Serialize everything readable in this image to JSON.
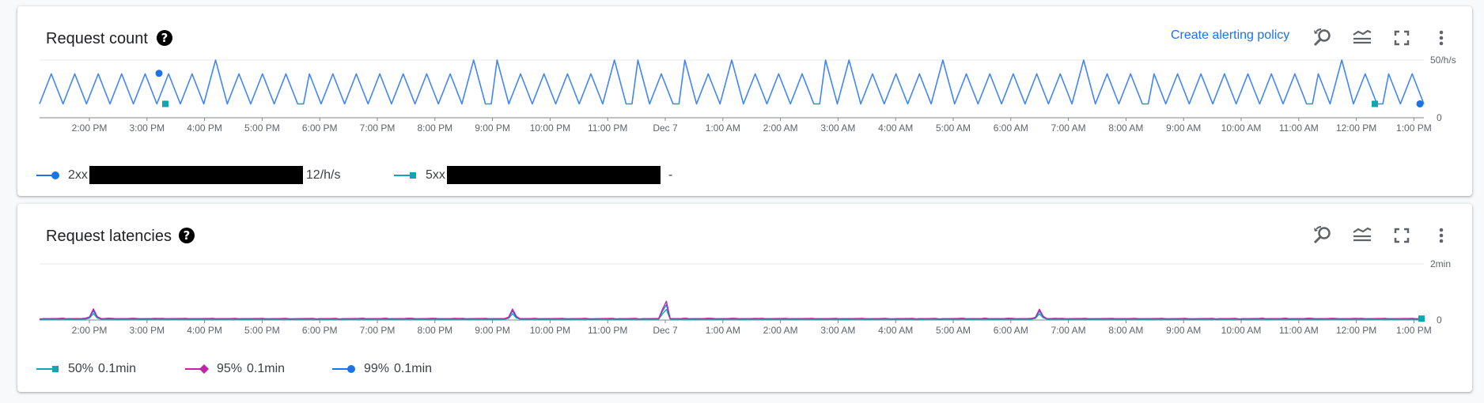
{
  "request_count": {
    "title": "Request count",
    "create_alert_label": "Create alerting policy",
    "y_top_label": "50/h/s",
    "y_bottom_label": "0",
    "legend": [
      {
        "name": "2xx",
        "value": "12/h/s",
        "color": "#1a73e8",
        "marker": "circle"
      },
      {
        "name": "5xx",
        "value": "-",
        "color": "#12a4af",
        "marker": "square"
      }
    ]
  },
  "request_latencies": {
    "title": "Request latencies",
    "y_top_label": "2min",
    "y_bottom_label": "0",
    "legend": [
      {
        "name": "50%",
        "value": "0.1min",
        "color": "#12a4af",
        "marker": "square"
      },
      {
        "name": "95%",
        "value": "0.1min",
        "color": "#c026a3",
        "marker": "diamond"
      },
      {
        "name": "99%",
        "value": "0.1min",
        "color": "#1a73e8",
        "marker": "circle"
      }
    ]
  },
  "x_ticks": [
    "2:00 PM",
    "3:00 PM",
    "4:00 PM",
    "5:00 PM",
    "6:00 PM",
    "7:00 PM",
    "8:00 PM",
    "9:00 PM",
    "10:00 PM",
    "11:00 PM",
    "Dec 7",
    "1:00 AM",
    "2:00 AM",
    "3:00 AM",
    "4:00 AM",
    "5:00 AM",
    "6:00 AM",
    "7:00 AM",
    "8:00 AM",
    "9:00 AM",
    "10:00 AM",
    "11:00 AM",
    "12:00 PM",
    "1:00 PM"
  ],
  "icons": [
    "help-icon",
    "zoom-reset-icon",
    "legend-toggle-icon",
    "fullscreen-icon",
    "more-vert-icon"
  ],
  "colors": {
    "accent": "#1a73e8",
    "teal": "#12a4af",
    "magenta": "#c026a3",
    "grid": "#e8eaed",
    "axis": "#80868b"
  },
  "chart_data": [
    {
      "type": "line",
      "title": "Request count",
      "ylim": [
        0,
        50
      ],
      "y_unit": "/h/s",
      "x_start": "1:15 PM",
      "x_end": "1:15 PM (next day)",
      "series": [
        {
          "name": "2xx",
          "pattern": "sawtooth between ~12 and ~38 /h/s, occasional spikes to ~50",
          "low": 12,
          "high": 38,
          "peak": 50,
          "last_value": 12
        },
        {
          "name": "5xx",
          "points": [
            {
              "x": "4:10 PM",
              "y": 12
            },
            {
              "x": "12:50 PM",
              "y": 12
            }
          ]
        }
      ]
    },
    {
      "type": "line",
      "title": "Request latencies",
      "ylim": [
        0,
        2
      ],
      "y_unit": "min",
      "series": [
        {
          "name": "50%",
          "baseline": 0.03
        },
        {
          "name": "95%",
          "baseline": 0.05,
          "spikes": [
            {
              "x": "2:05 PM",
              "y": 0.4
            },
            {
              "x": "9:20 PM",
              "y": 0.4
            },
            {
              "x": "Dec 7",
              "y": 0.85
            },
            {
              "x": "6:30 AM",
              "y": 0.4
            }
          ]
        },
        {
          "name": "99%",
          "baseline": 0.05
        }
      ]
    }
  ]
}
